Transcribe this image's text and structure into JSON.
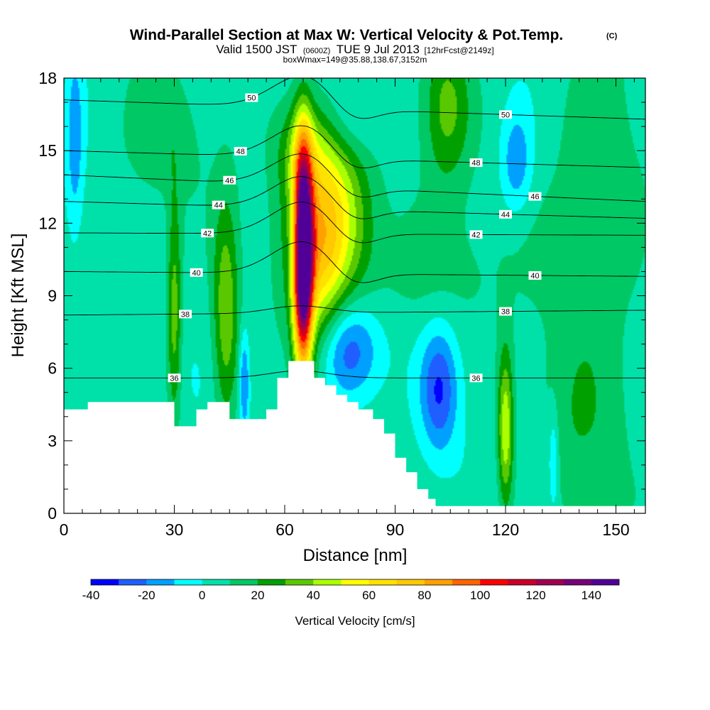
{
  "chart_data": {
    "type": "heatmap",
    "title": "Wind-Parallel Section at Max W: Vertical Velocity & Pot.Temp.",
    "title_mark": "(C)",
    "subtitle": {
      "valid": "Valid 1500 JST",
      "zulu": "(0600Z)",
      "date": "TUE 9 Jul 2013",
      "forecast": "[12hrFcst@2149z]"
    },
    "subtitle2": "boxWmax=149@35.88,138.67,3152m",
    "xlabel": "Distance [nm]",
    "ylabel": "Height [Kft MSL]",
    "xlim": [
      0,
      158
    ],
    "ylim": [
      0,
      18
    ],
    "xticks": [
      0,
      30,
      60,
      90,
      120,
      150
    ],
    "yticks": [
      0,
      3,
      6,
      9,
      12,
      15,
      18
    ],
    "colorbar": {
      "title": "Vertical Velocity [cm/s]",
      "levels": [
        -40,
        -30,
        -20,
        -10,
        0,
        10,
        20,
        30,
        40,
        50,
        60,
        70,
        80,
        90,
        100,
        110,
        120,
        130,
        140,
        150
      ],
      "colors": [
        "#0000ff",
        "#1f5fff",
        "#00a0ff",
        "#00ffff",
        "#00e1aa",
        "#00c864",
        "#00a000",
        "#5ac800",
        "#aaff00",
        "#ffff00",
        "#ffe100",
        "#ffc800",
        "#ffa000",
        "#ff6400",
        "#ff0000",
        "#c80028",
        "#a00050",
        "#780078",
        "#500096"
      ],
      "tick_labels": [
        "-40",
        "-20",
        "0",
        "20",
        "40",
        "60",
        "80",
        "100",
        "120",
        "140"
      ]
    },
    "terrain": [
      [
        0,
        4.3
      ],
      [
        6.5,
        4.3
      ],
      [
        6.5,
        4.6
      ],
      [
        30,
        4.6
      ],
      [
        30,
        3.6
      ],
      [
        36,
        3.6
      ],
      [
        36,
        4.3
      ],
      [
        39,
        4.3
      ],
      [
        39,
        4.6
      ],
      [
        45,
        4.6
      ],
      [
        45,
        3.9
      ],
      [
        55,
        3.9
      ],
      [
        55,
        4.3
      ],
      [
        58,
        4.3
      ],
      [
        58,
        5.6
      ],
      [
        61,
        5.6
      ],
      [
        61,
        6.3
      ],
      [
        68,
        6.3
      ],
      [
        68,
        5.6
      ],
      [
        71,
        5.6
      ],
      [
        71,
        5.3
      ],
      [
        74,
        5.3
      ],
      [
        74,
        4.9
      ],
      [
        77,
        4.9
      ],
      [
        77,
        4.6
      ],
      [
        80,
        4.6
      ],
      [
        80,
        4.3
      ],
      [
        84,
        4.3
      ],
      [
        84,
        3.9
      ],
      [
        87,
        3.9
      ],
      [
        87,
        3.3
      ],
      [
        90,
        3.3
      ],
      [
        90,
        2.3
      ],
      [
        93,
        2.3
      ],
      [
        93,
        1.7
      ],
      [
        96,
        1.7
      ],
      [
        96,
        1.0
      ],
      [
        99,
        1.0
      ],
      [
        99,
        0.6
      ],
      [
        101,
        0.6
      ],
      [
        101,
        0.3
      ],
      [
        158,
        0.3
      ],
      [
        158,
        0
      ]
    ],
    "w_features": [
      {
        "x": 65,
        "z": 10.6,
        "sx": 1.8,
        "sz": 3.2,
        "w": 150
      },
      {
        "x": 72,
        "z": 12.3,
        "sx": 7.5,
        "sz": 2.8,
        "w": 60
      },
      {
        "x": 69,
        "z": 9.3,
        "sx": 4.5,
        "sz": 2.8,
        "w": 25
      },
      {
        "x": 65,
        "z": 15.2,
        "sx": 5,
        "sz": 1.4,
        "w": 22
      },
      {
        "x": 104,
        "z": 16.8,
        "sx": 4.5,
        "sz": 2.2,
        "w": 28
      },
      {
        "x": 120,
        "z": 3.5,
        "sx": 1.5,
        "sz": 2.3,
        "w": 45
      },
      {
        "x": 44,
        "z": 8.3,
        "sx": 2.5,
        "sz": 3.3,
        "w": 34
      },
      {
        "x": 30,
        "z": 8.3,
        "sx": 1.4,
        "sz": 3.3,
        "w": 32
      },
      {
        "x": 145,
        "z": 13,
        "sx": 10,
        "sz": 5,
        "w": 14
      },
      {
        "x": 140,
        "z": 3,
        "sx": 8,
        "sz": 3,
        "w": 12
      },
      {
        "x": 26,
        "z": 15.5,
        "sx": 8,
        "sz": 2,
        "w": 12
      },
      {
        "x": 100,
        "z": 10,
        "sx": 14,
        "sz": 2,
        "w": 10
      },
      {
        "x": 77,
        "z": 6.8,
        "sx": 6,
        "sz": 1.5,
        "w": -38
      },
      {
        "x": 102,
        "z": 5.1,
        "sx": 3.5,
        "sz": 1.8,
        "w": -33
      },
      {
        "x": 63,
        "z": 11.3,
        "sx": 1.5,
        "sz": 1.2,
        "w": -20
      },
      {
        "x": 123,
        "z": 14.5,
        "sx": 3,
        "sz": 1.5,
        "w": -23
      },
      {
        "x": 78,
        "z": 16.3,
        "sx": 6,
        "sz": 1.3,
        "w": -16
      },
      {
        "x": 3,
        "z": 15.5,
        "sx": 1.5,
        "sz": 2.5,
        "w": -20
      },
      {
        "x": 49,
        "z": 5.5,
        "sx": 1,
        "sz": 1.5,
        "w": -28
      },
      {
        "x": 133,
        "z": 2.2,
        "sx": 1,
        "sz": 1.5,
        "w": -20
      }
    ],
    "contours": [
      {
        "level": 36,
        "label": "36",
        "y0": 5.6,
        "y1": 5.6
      },
      {
        "level": 38,
        "label": "38",
        "y0": 8.2,
        "y1": 8.4
      },
      {
        "level": 40,
        "label": "40",
        "y0": 10.0,
        "y1": 9.8
      },
      {
        "level": 42,
        "label": "42",
        "y0": 11.6,
        "y1": 11.5
      },
      {
        "level": 44,
        "label": "44",
        "y0": 12.9,
        "y1": 12.2
      },
      {
        "level": 46,
        "label": "46",
        "y0": 14.0,
        "y1": 12.9
      },
      {
        "level": 48,
        "label": "48",
        "y0": 15.0,
        "y1": 14.3
      },
      {
        "level": 50,
        "label": "50",
        "y0": 17.1,
        "y1": 16.3
      }
    ]
  }
}
